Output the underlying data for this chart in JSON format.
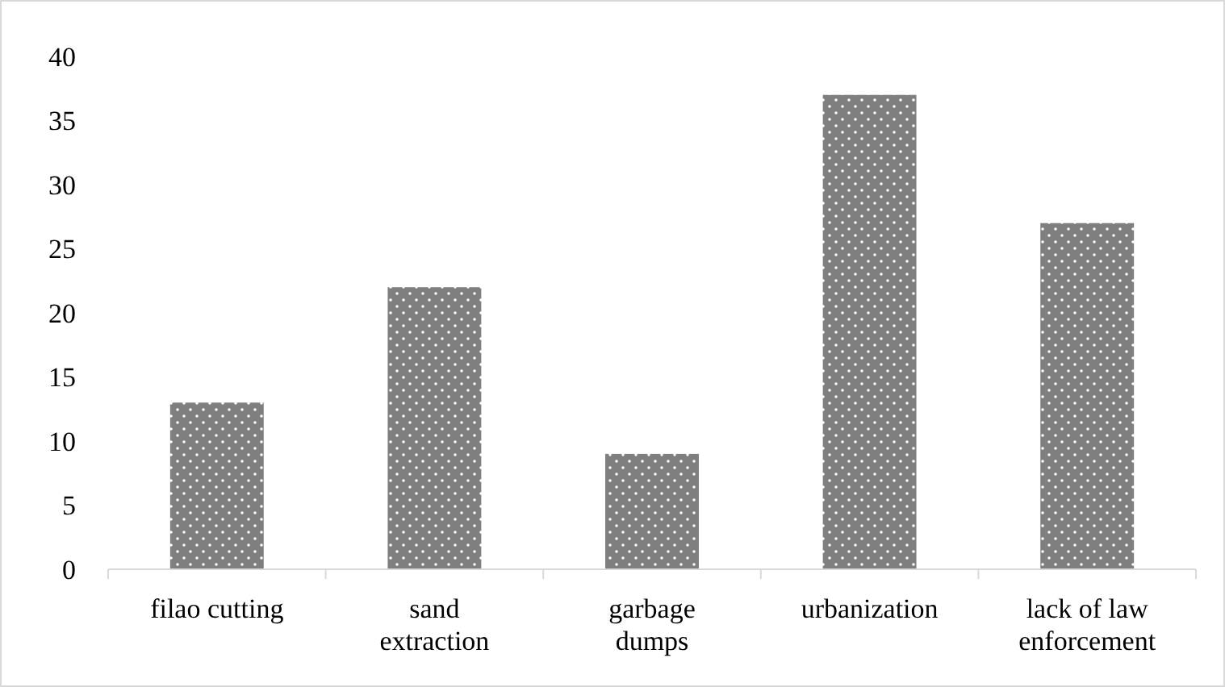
{
  "chart_data": {
    "type": "bar",
    "categories": [
      "filao cutting",
      "sand extraction",
      "garbage dumps",
      "urbanization",
      "lack of law enforcement"
    ],
    "values": [
      13,
      22,
      9,
      37,
      27
    ],
    "color": "#7f7f7f",
    "ylim": [
      0,
      40
    ],
    "yticks": [
      0,
      5,
      10,
      15,
      20,
      25,
      30,
      35,
      40
    ],
    "grid": false
  }
}
